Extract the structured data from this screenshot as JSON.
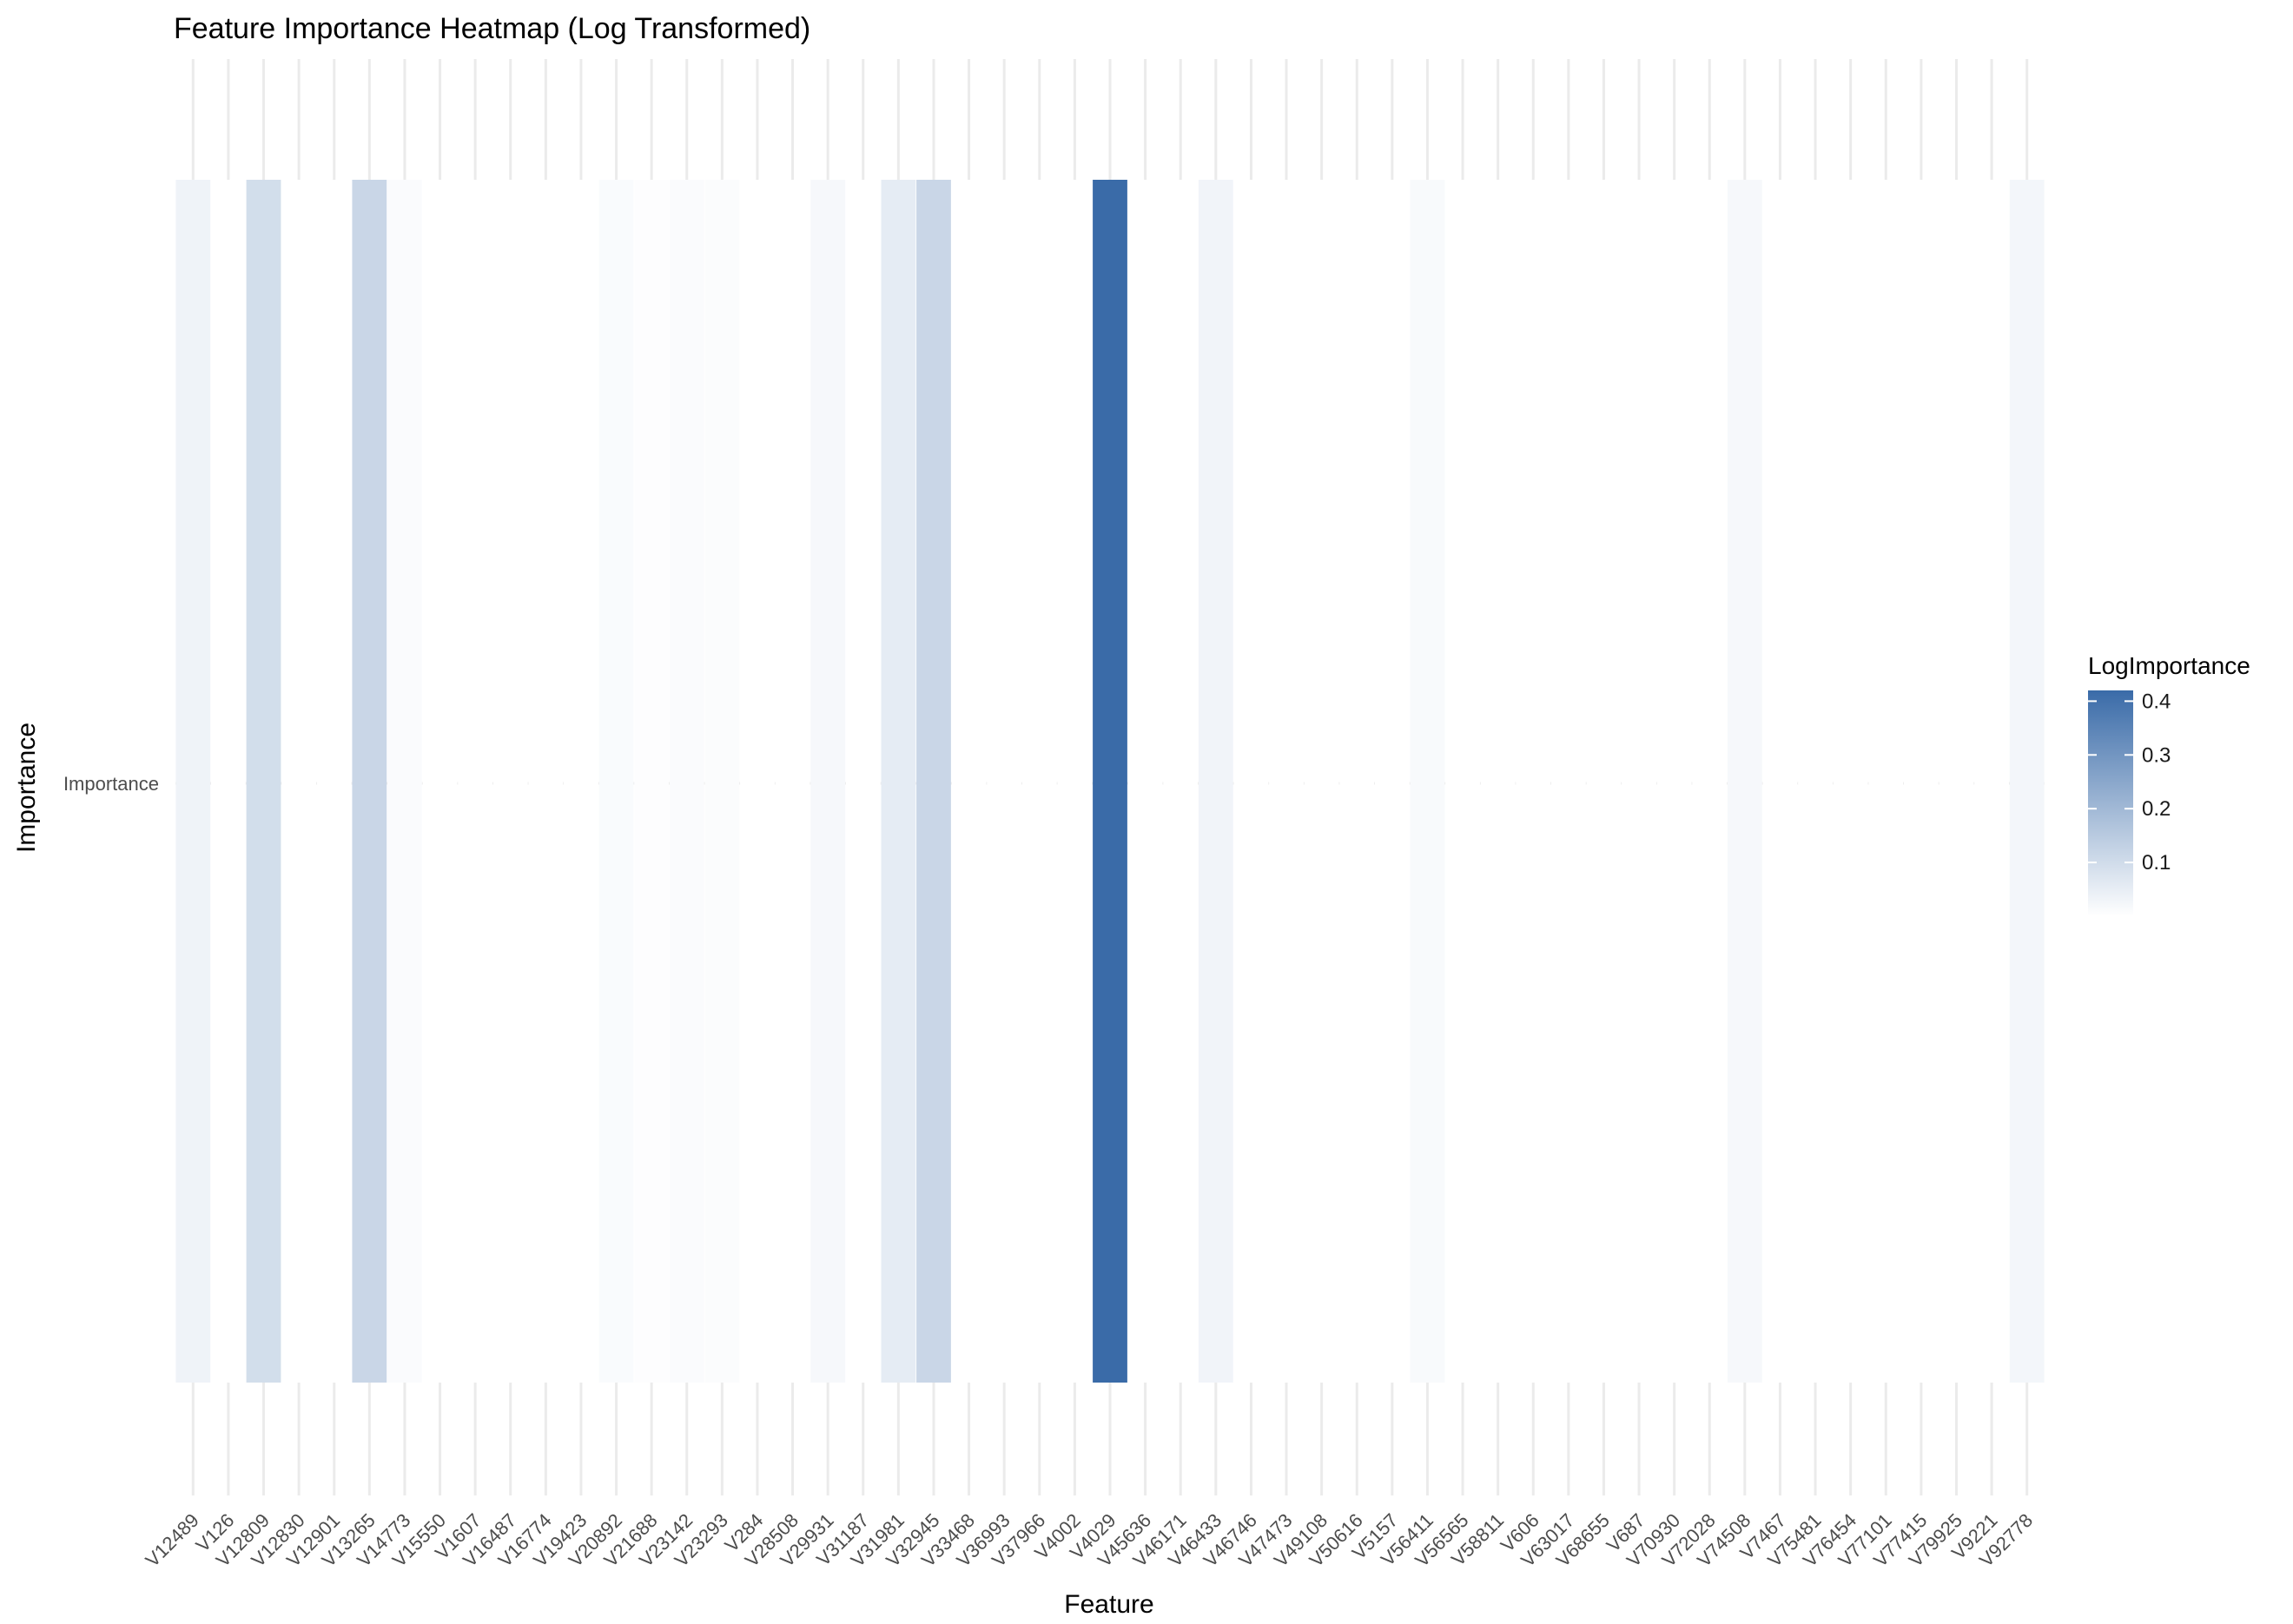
{
  "chart_data": {
    "type": "heatmap",
    "title": "Feature Importance Heatmap (Log Transformed)",
    "xlabel": "Feature",
    "ylabel": "Importance",
    "y_categories": [
      "Importance"
    ],
    "x_categories": [
      "V12489",
      "V126",
      "V12809",
      "V12830",
      "V12901",
      "V13265",
      "V14773",
      "V15550",
      "V1607",
      "V16487",
      "V16774",
      "V19423",
      "V20892",
      "V21688",
      "V23142",
      "V23293",
      "V284",
      "V28508",
      "V29931",
      "V31187",
      "V31981",
      "V32945",
      "V33468",
      "V36993",
      "V37966",
      "V4002",
      "V4029",
      "V45636",
      "V46171",
      "V46433",
      "V46746",
      "V47473",
      "V49108",
      "V50616",
      "V5157",
      "V56411",
      "V56565",
      "V58811",
      "V606",
      "V63017",
      "V68655",
      "V687",
      "V70930",
      "V72028",
      "V74508",
      "V7467",
      "V75481",
      "V76454",
      "V77101",
      "V77415",
      "V79925",
      "V9221",
      "V92778"
    ],
    "values": [
      0.035,
      0.0,
      0.095,
      0.0,
      0.0,
      0.115,
      0.01,
      0.0,
      0.0,
      0.0,
      0.0,
      0.0,
      0.012,
      0.005,
      0.01,
      0.008,
      0.0,
      0.0,
      0.02,
      0.0,
      0.055,
      0.115,
      0.0,
      0.0,
      0.0,
      0.0,
      0.42,
      0.0,
      0.0,
      0.03,
      0.0,
      0.0,
      0.0,
      0.0,
      0.0,
      0.015,
      0.0,
      0.0,
      0.0,
      0.0,
      0.0,
      0.0,
      0.0,
      0.0,
      0.02,
      0.0,
      0.0,
      0.0,
      0.0,
      0.0,
      0.0,
      0.0,
      0.025
    ],
    "color_low": "#ffffff",
    "color_high": "#3a6ba8",
    "colorbar": {
      "title": "LogImportance",
      "ticks": [
        0.1,
        0.2,
        0.3,
        0.4
      ],
      "tick_labels": [
        "0.1",
        "0.2",
        "0.3",
        "0.4"
      ],
      "range": [
        0.0,
        0.42
      ]
    },
    "grid": true,
    "legend_position": "right"
  }
}
